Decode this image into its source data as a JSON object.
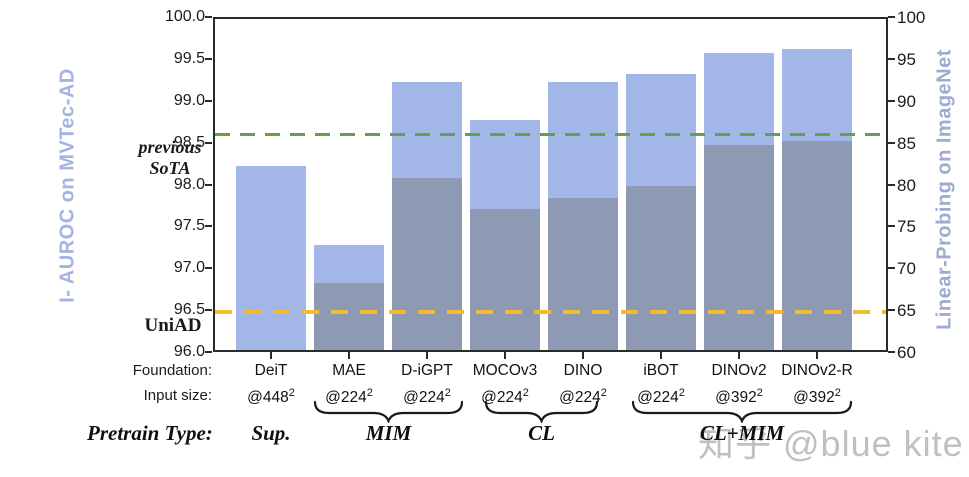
{
  "chart_data": {
    "type": "bar",
    "title": "",
    "legend": "none",
    "grid": false,
    "categories": [
      "DeiT",
      "MAE",
      "D-iGPT",
      "MOCOv3",
      "DINO",
      "iBOT",
      "DINOv2",
      "DINOv2-R"
    ],
    "input_sizes": [
      {
        "base": "@448",
        "sup": "2"
      },
      {
        "base": "@224",
        "sup": "2"
      },
      {
        "base": "@224",
        "sup": "2"
      },
      {
        "base": "@224",
        "sup": "2"
      },
      {
        "base": "@224",
        "sup": "2"
      },
      {
        "base": "@224",
        "sup": "2"
      },
      {
        "base": "@392",
        "sup": "2"
      },
      {
        "base": "@392",
        "sup": "2"
      }
    ],
    "series": [
      {
        "name": "I- AUROC on MVTec-AD",
        "axis": "left",
        "color": "#a3b6e8",
        "values": [
          98.2,
          97.25,
          99.2,
          98.75,
          99.2,
          99.3,
          99.55,
          99.6
        ]
      },
      {
        "name": "Linear-Probing on ImageNet",
        "axis": "right",
        "color": "#8e99b4",
        "values": [
          null,
          68.0,
          80.5,
          76.8,
          78.2,
          79.6,
          84.5,
          85.0
        ]
      }
    ],
    "left_axis": {
      "title": "I- AUROC on MVTec-AD",
      "min": 96.0,
      "max": 100.0,
      "step": 0.5,
      "tick_labels": [
        "100.0",
        "99.5",
        "99.0",
        "98.5",
        "98.0",
        "97.5",
        "97.0",
        "96.5",
        "96.0"
      ]
    },
    "right_axis": {
      "title": "Linear-Probing on ImageNet",
      "min": 60,
      "max": 100,
      "step": 5,
      "tick_labels": [
        "100",
        "95",
        "90",
        "85",
        "80",
        "75",
        "70",
        "65",
        "60"
      ]
    },
    "reference_lines": [
      {
        "label": "previous\nSoTA",
        "value": 98.62,
        "axis": "left",
        "style": "dashed",
        "color": "#62a050",
        "label_color": "#4f8c40"
      },
      {
        "label": "UniAD",
        "value": 96.5,
        "axis": "left",
        "style": "dashed",
        "color": "#f2bb30",
        "label_color": "#eeb41c"
      }
    ],
    "groups": [
      {
        "label": "Sup.",
        "from": 0,
        "to": 0,
        "brace": false
      },
      {
        "label": "MIM",
        "from": 1,
        "to": 2,
        "brace": true
      },
      {
        "label": "CL",
        "from": 3,
        "to": 4,
        "brace": true
      },
      {
        "label": "CL+MIM",
        "from": 5,
        "to": 7,
        "brace": true
      }
    ],
    "row_labels": {
      "foundation": "Foundation:",
      "input_size": "Input size:",
      "pretrain": "Pretrain Type:"
    }
  },
  "watermark": "知乎 @blue kite"
}
